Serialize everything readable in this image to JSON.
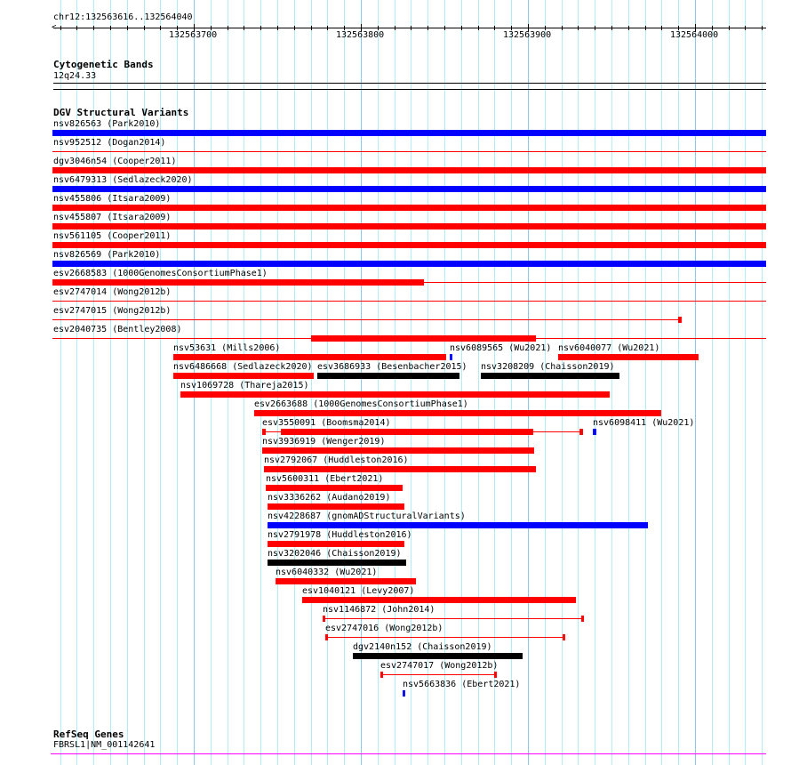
{
  "ruler": {
    "position_label": "chr12:132563616..132564040",
    "view_start": 132563616,
    "view_end": 132564040,
    "tick_labels": [
      "132563700",
      "132563800",
      "132563900",
      "132564000"
    ]
  },
  "colors": {
    "loss": "#ff0000",
    "gain": "#0000ff",
    "complex": "#000000",
    "gene": "#ff00ff",
    "grid": "#b0ecf4",
    "grid_major": "#8cc8e8"
  },
  "cytoband": {
    "title": "Cytogenetic Bands",
    "band": "12q24.33"
  },
  "dgv": {
    "title": "DGV Structural Variants",
    "features": [
      {
        "label": "nsv826563 (Park2010)",
        "color": "#0000ff",
        "row": 0,
        "start": 132563600,
        "end": 132564060,
        "blocks": [
          [
            132563600,
            132564060
          ]
        ]
      },
      {
        "label": "nsv952512 (Dogan2014)",
        "color": "#ff0000",
        "row": 1,
        "start": 132563600,
        "end": 132564060,
        "blocks": []
      },
      {
        "label": "dgv3046n54 (Cooper2011)",
        "color": "#ff0000",
        "row": 2,
        "start": 132563600,
        "end": 132564060,
        "blocks": [
          [
            132563600,
            132564060
          ]
        ]
      },
      {
        "label": "nsv6479313 (Sedlazeck2020)",
        "color": "#0000ff",
        "row": 3,
        "start": 132563600,
        "end": 132564060,
        "blocks": [
          [
            132563600,
            132564060
          ]
        ]
      },
      {
        "label": "nsv455806 (Itsara2009)",
        "color": "#ff0000",
        "row": 4,
        "start": 132563600,
        "end": 132564060,
        "blocks": [
          [
            132563600,
            132564060
          ]
        ]
      },
      {
        "label": "nsv455807 (Itsara2009)",
        "color": "#ff0000",
        "row": 5,
        "start": 132563600,
        "end": 132564060,
        "blocks": [
          [
            132563600,
            132564060
          ]
        ]
      },
      {
        "label": "nsv561105 (Cooper2011)",
        "color": "#ff0000",
        "row": 6,
        "start": 132563600,
        "end": 132564060,
        "blocks": [
          [
            132563600,
            132564060
          ]
        ]
      },
      {
        "label": "nsv826569 (Park2010)",
        "color": "#0000ff",
        "row": 7,
        "start": 132563600,
        "end": 132564060,
        "blocks": [
          [
            132563600,
            132564060
          ]
        ]
      },
      {
        "label": "esv2668583 (1000GenomesConsortiumPhase1)",
        "color": "#ff0000",
        "row": 8,
        "start": 132563600,
        "end": 132564060,
        "blocks": [
          [
            132563600,
            132563838
          ]
        ]
      },
      {
        "label": "esv2747014 (Wong2012b)",
        "color": "#ff0000",
        "row": 9,
        "start": 132563600,
        "end": 132564060,
        "blocks": []
      },
      {
        "label": "esv2747015 (Wong2012b)",
        "color": "#ff0000",
        "row": 10,
        "start": 132563600,
        "end": 132563992,
        "blocks": [
          [
            132563990,
            132563992
          ]
        ]
      },
      {
        "label": "esv2040735 (Bentley2008)",
        "color": "#ff0000",
        "row": 11,
        "start": 132563600,
        "end": 132564060,
        "blocks": [
          [
            132563770,
            132563905
          ]
        ]
      },
      {
        "label": "nsv53631 (Mills2006)",
        "color": "#ff0000",
        "row": 12,
        "start": 132563688,
        "end": 132563851,
        "blocks": [
          [
            132563688,
            132563851
          ]
        ]
      },
      {
        "label": "nsv6089565 (Wu2021)",
        "color": "#0000ff",
        "row": 12,
        "start": 132563853,
        "end": 132563855,
        "blocks": [
          [
            132563853,
            132563855
          ]
        ]
      },
      {
        "label": "nsv6040077 (Wu2021)",
        "color": "#ff0000",
        "row": 12,
        "start": 132563918,
        "end": 132564002,
        "blocks": [
          [
            132563918,
            132564002
          ]
        ]
      },
      {
        "label": "nsv6486668 (Sedlazeck2020)",
        "color": "#ff0000",
        "row": 13,
        "start": 132563688,
        "end": 132563772,
        "blocks": [
          [
            132563688,
            132563772
          ]
        ]
      },
      {
        "label": "esv3686933 (Besenbacher2015)",
        "color": "#000000",
        "row": 13,
        "start": 132563774,
        "end": 132563859,
        "blocks": [
          [
            132563774,
            132563859
          ]
        ]
      },
      {
        "label": "nsv3208209 (Chaisson2019)",
        "color": "#000000",
        "row": 13,
        "start": 132563872,
        "end": 132563955,
        "blocks": [
          [
            132563872,
            132563955
          ]
        ]
      },
      {
        "label": "nsv1069728 (Thareja2015)",
        "color": "#ff0000",
        "row": 14,
        "start": 132563692,
        "end": 132563949,
        "blocks": [
          [
            132563692,
            132563949
          ]
        ]
      },
      {
        "label": "esv2663688 (1000GenomesConsortiumPhase1)",
        "color": "#ff0000",
        "row": 15,
        "start": 132563736,
        "end": 132563980,
        "blocks": [
          [
            132563736,
            132563980
          ]
        ]
      },
      {
        "label": "esv3550091 (Boomsma2014)",
        "color": "#ff0000",
        "row": 16,
        "start": 132563741,
        "end": 132563933,
        "blocks": [
          [
            132563741,
            132563743
          ],
          [
            132563752,
            132563903
          ],
          [
            132563931,
            132563933
          ]
        ]
      },
      {
        "label": "nsv6098411 (Wu2021)",
        "color": "#0000ff",
        "row": 16,
        "start": 132563939,
        "end": 132563941,
        "blocks": [
          [
            132563939,
            132563941
          ]
        ]
      },
      {
        "label": "nsv3936919 (Wenger2019)",
        "color": "#ff0000",
        "row": 17,
        "start": 132563741,
        "end": 132563904,
        "blocks": [
          [
            132563741,
            132563904
          ]
        ]
      },
      {
        "label": "nsv2792067 (Huddleston2016)",
        "color": "#ff0000",
        "row": 18,
        "start": 132563742,
        "end": 132563905,
        "blocks": [
          [
            132563742,
            132563905
          ]
        ]
      },
      {
        "label": "nsv5600311 (Ebert2021)",
        "color": "#ff0000",
        "row": 19,
        "start": 132563743,
        "end": 132563825,
        "blocks": [
          [
            132563743,
            132563825
          ]
        ]
      },
      {
        "label": "nsv3336262 (Audano2019)",
        "color": "#ff0000",
        "row": 20,
        "start": 132563744,
        "end": 132563826,
        "blocks": [
          [
            132563744,
            132563826
          ]
        ]
      },
      {
        "label": "nsv4228687 (gnomADStructuralVariants)",
        "color": "#0000ff",
        "row": 21,
        "start": 132563744,
        "end": 132563972,
        "blocks": [
          [
            132563744,
            132563972
          ]
        ]
      },
      {
        "label": "nsv2791978 (Huddleston2016)",
        "color": "#ff0000",
        "row": 22,
        "start": 132563744,
        "end": 132563826,
        "blocks": [
          [
            132563744,
            132563826
          ]
        ]
      },
      {
        "label": "nsv3202046 (Chaisson2019)",
        "color": "#000000",
        "row": 23,
        "start": 132563744,
        "end": 132563827,
        "blocks": [
          [
            132563744,
            132563827
          ]
        ]
      },
      {
        "label": "nsv6040332 (Wu2021)",
        "color": "#ff0000",
        "row": 24,
        "start": 132563749,
        "end": 132563833,
        "blocks": [
          [
            132563749,
            132563833
          ]
        ]
      },
      {
        "label": "esv1040121 (Levy2007)",
        "color": "#ff0000",
        "row": 25,
        "start": 132563765,
        "end": 132563929,
        "blocks": [
          [
            132563765,
            132563929
          ]
        ]
      },
      {
        "label": "nsv1146872 (John2014)",
        "color": "#ff0000",
        "row": 26,
        "start": 132563777,
        "end": 132563933,
        "blocks": [
          [
            132563777,
            132563778
          ],
          [
            132563932,
            132563933
          ]
        ]
      },
      {
        "label": "esv2747016 (Wong2012b)",
        "color": "#ff0000",
        "row": 27,
        "start": 132563779,
        "end": 132563922,
        "blocks": [
          [
            132563779,
            132563780
          ],
          [
            132563921,
            132563922
          ]
        ]
      },
      {
        "label": "dgv2140n152 (Chaisson2019)",
        "color": "#000000",
        "row": 28,
        "start": 132563795,
        "end": 132563897,
        "blocks": [
          [
            132563795,
            132563897
          ]
        ]
      },
      {
        "label": "esv2747017 (Wong2012b)",
        "color": "#ff0000",
        "row": 29,
        "start": 132563812,
        "end": 132563881,
        "blocks": [
          [
            132563812,
            132563813
          ],
          [
            132563880,
            132563881
          ]
        ]
      },
      {
        "label": "nsv5663836 (Ebert2021)",
        "color": "#0000ff",
        "row": 30,
        "start": 132563825,
        "end": 132563826,
        "blocks": [
          [
            132563825,
            132563826
          ]
        ]
      }
    ]
  },
  "refseq": {
    "title": "RefSeq Genes",
    "gene_label": "FBRSL1|NM_001142641"
  }
}
